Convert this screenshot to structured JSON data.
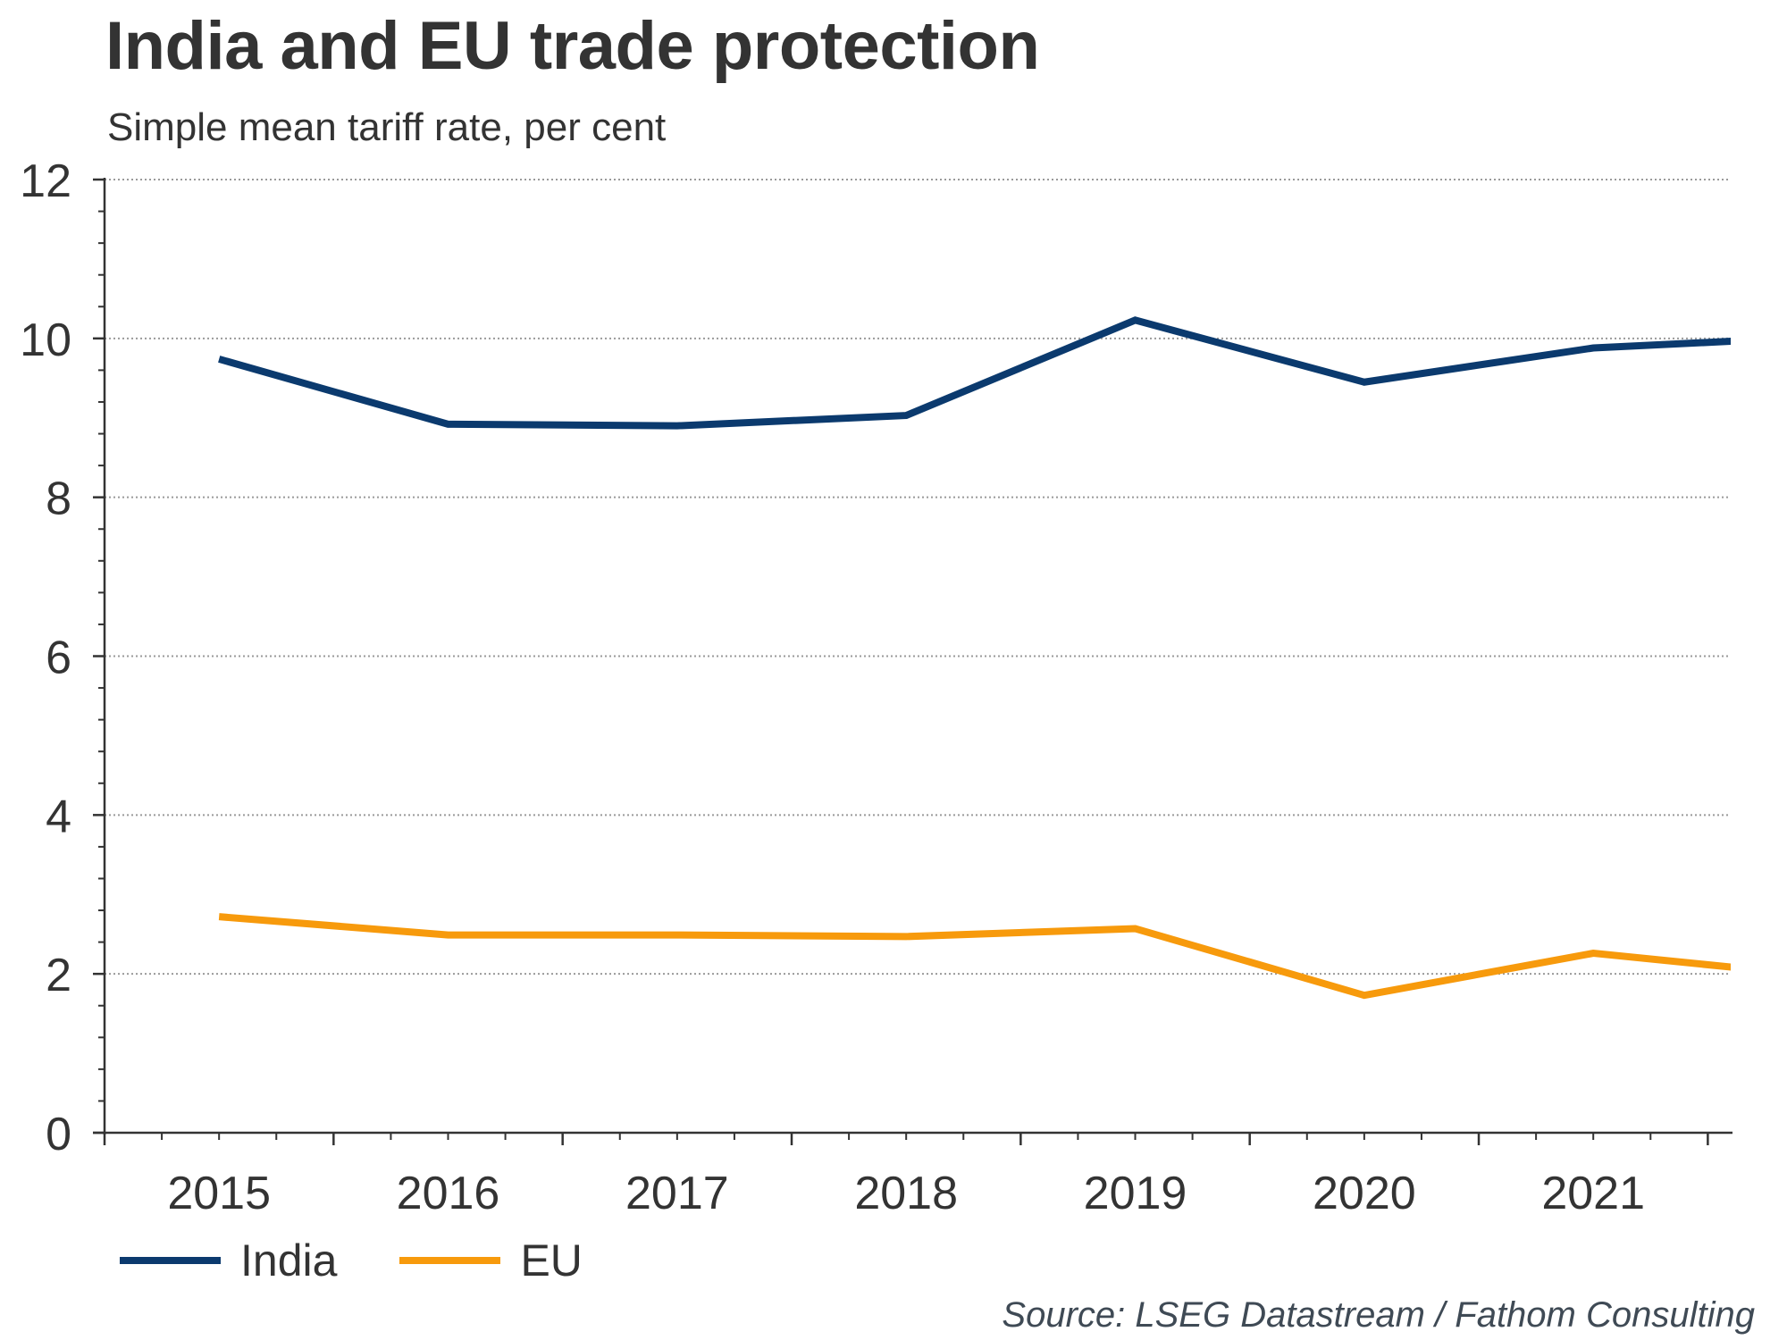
{
  "header": {
    "title": "India and EU trade protection",
    "subtitle": "Simple mean tariff rate, per cent"
  },
  "footer": {
    "source": "Source: LSEG Datastream / Fathom Consulting"
  },
  "chart_data": {
    "type": "line",
    "title": "India and EU trade protection",
    "subtitle": "Simple mean tariff rate, per cent",
    "xlabel": "",
    "ylabel": "",
    "x": [
      2015,
      2016,
      2017,
      2018,
      2019,
      2020,
      2021
    ],
    "x_tick_labels": [
      "2015",
      "2016",
      "2017",
      "2018",
      "2019",
      "2020",
      "2021"
    ],
    "xlim": [
      2015,
      2022.1
    ],
    "ylim": [
      0,
      12
    ],
    "y_ticks": [
      0,
      2,
      4,
      6,
      8,
      10,
      12
    ],
    "y_tick_labels": [
      "0",
      "2",
      "4",
      "6",
      "8",
      "10",
      "12"
    ],
    "y_minor_step": 0.4,
    "x_minor_per_year": 4,
    "grid": "horizontal dotted at major y ticks",
    "series": [
      {
        "name": "India",
        "color": "#0b3a6e",
        "values": [
          9.74,
          8.92,
          8.9,
          9.03,
          10.23,
          9.45,
          9.88
        ],
        "trailing_clipped_value": 10.02
      },
      {
        "name": "EU",
        "color": "#f79a0c",
        "values": [
          2.72,
          2.49,
          2.49,
          2.47,
          2.57,
          1.73,
          2.26
        ],
        "trailing_clipped_value": 1.97
      }
    ],
    "legend": {
      "position": "bottom-left",
      "entries": [
        "India",
        "EU"
      ]
    },
    "source": "Source: LSEG Datastream / Fathom Consulting"
  }
}
